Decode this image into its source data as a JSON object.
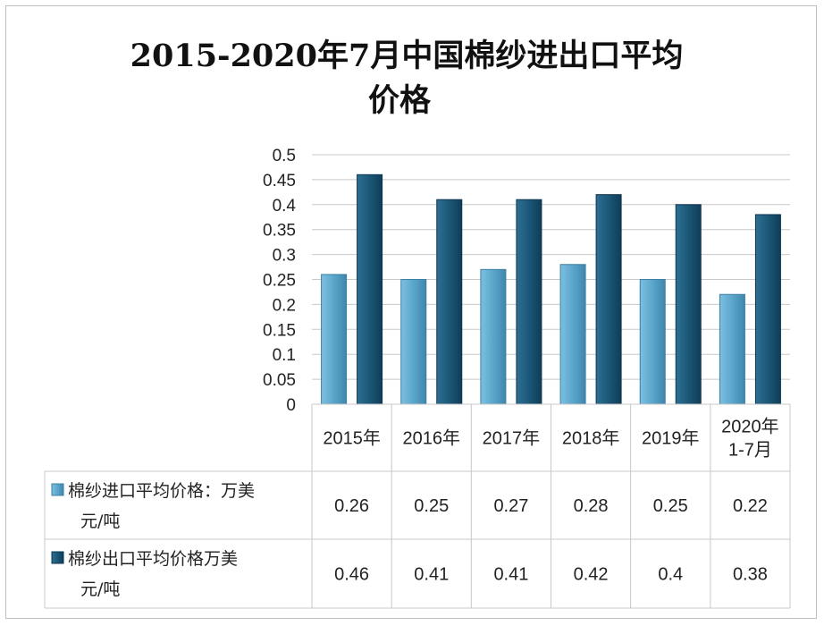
{
  "chart_data": {
    "type": "bar",
    "title": "2015-2020年7月中国棉纱进出口平均价格",
    "title_line1": "2015-2020年7月中国棉纱进出口平均",
    "title_line2": "价格",
    "categories": [
      "2015年",
      "2016年",
      "2017年",
      "2018年",
      "2019年",
      "2020年1-7月"
    ],
    "category_lines": [
      [
        "2015年"
      ],
      [
        "2016年"
      ],
      [
        "2017年"
      ],
      [
        "2018年"
      ],
      [
        "2019年"
      ],
      [
        "2020年",
        "1-7月"
      ]
    ],
    "series": [
      {
        "name": "棉纱进口平均价格：万美元/吨",
        "name_lines": [
          "棉纱进口平均价格：万美",
          "元/吨"
        ],
        "color": "#5ea8cc",
        "values": [
          0.26,
          0.25,
          0.27,
          0.28,
          0.25,
          0.22
        ],
        "labels": [
          "0.26",
          "0.25",
          "0.27",
          "0.28",
          "0.25",
          "0.22"
        ]
      },
      {
        "name": "棉纱出口平均价格万美元/吨",
        "name_lines": [
          "棉纱出口平均价格万美",
          "元/吨"
        ],
        "color": "#1e5b7e",
        "values": [
          0.46,
          0.41,
          0.41,
          0.42,
          0.4,
          0.38
        ],
        "labels": [
          "0.46",
          "0.41",
          "0.41",
          "0.42",
          "0.4",
          "0.38"
        ]
      }
    ],
    "ylim": [
      0,
      0.5
    ],
    "yticks": [
      0,
      0.05,
      0.1,
      0.15,
      0.2,
      0.25,
      0.3,
      0.35,
      0.4,
      0.45,
      0.5
    ],
    "ytick_labels": [
      "0",
      "0.05",
      "0.1",
      "0.15",
      "0.2",
      "0.25",
      "0.3",
      "0.35",
      "0.4",
      "0.45",
      "0.5"
    ],
    "xlabel": "",
    "ylabel": "",
    "grid": true,
    "legend": "data-table"
  }
}
